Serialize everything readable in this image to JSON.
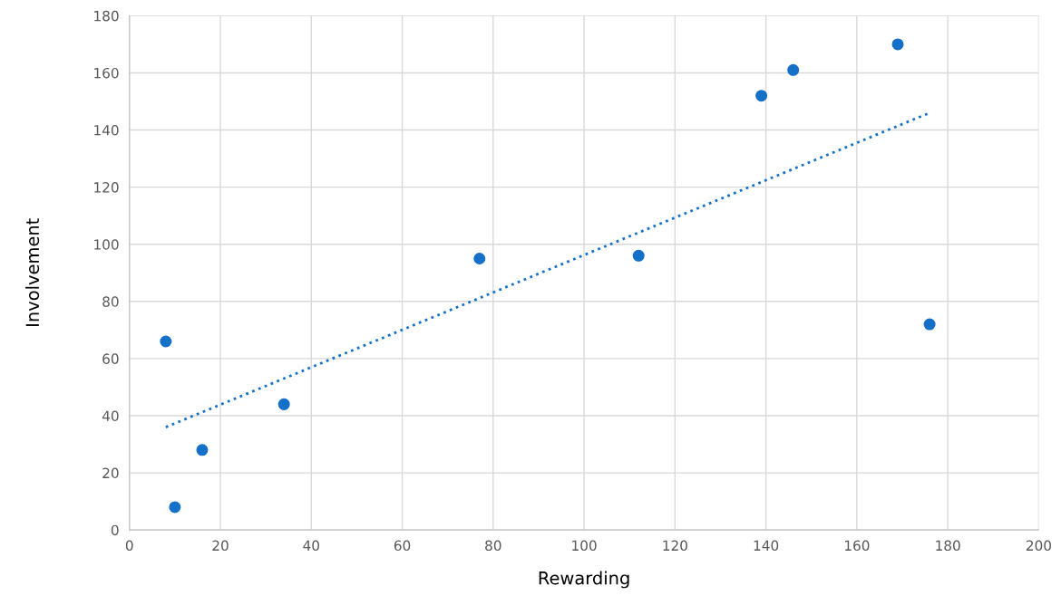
{
  "chart_data": {
    "type": "scatter",
    "xlabel": "Rewarding",
    "ylabel": "Involvement",
    "xlim": [
      0,
      200
    ],
    "xticks": [
      0,
      20,
      40,
      60,
      80,
      100,
      120,
      140,
      160,
      180,
      200
    ],
    "ylim": [
      0,
      180
    ],
    "yticks": [
      0,
      20,
      40,
      60,
      80,
      100,
      120,
      140,
      160,
      180
    ],
    "grid": true,
    "series": [
      {
        "marker": "circle",
        "color": "#1570c8",
        "x": [
          8,
          10,
          16,
          34,
          77,
          112,
          139,
          146,
          169,
          176
        ],
        "values": [
          66,
          8,
          28,
          44,
          95,
          96,
          152,
          161,
          170,
          72
        ]
      },
      {
        "type": "line",
        "color": "#1570c8",
        "line_style": "dotted",
        "marker": "none",
        "x": [
          8,
          176
        ],
        "values": [
          36,
          146
        ]
      }
    ]
  }
}
